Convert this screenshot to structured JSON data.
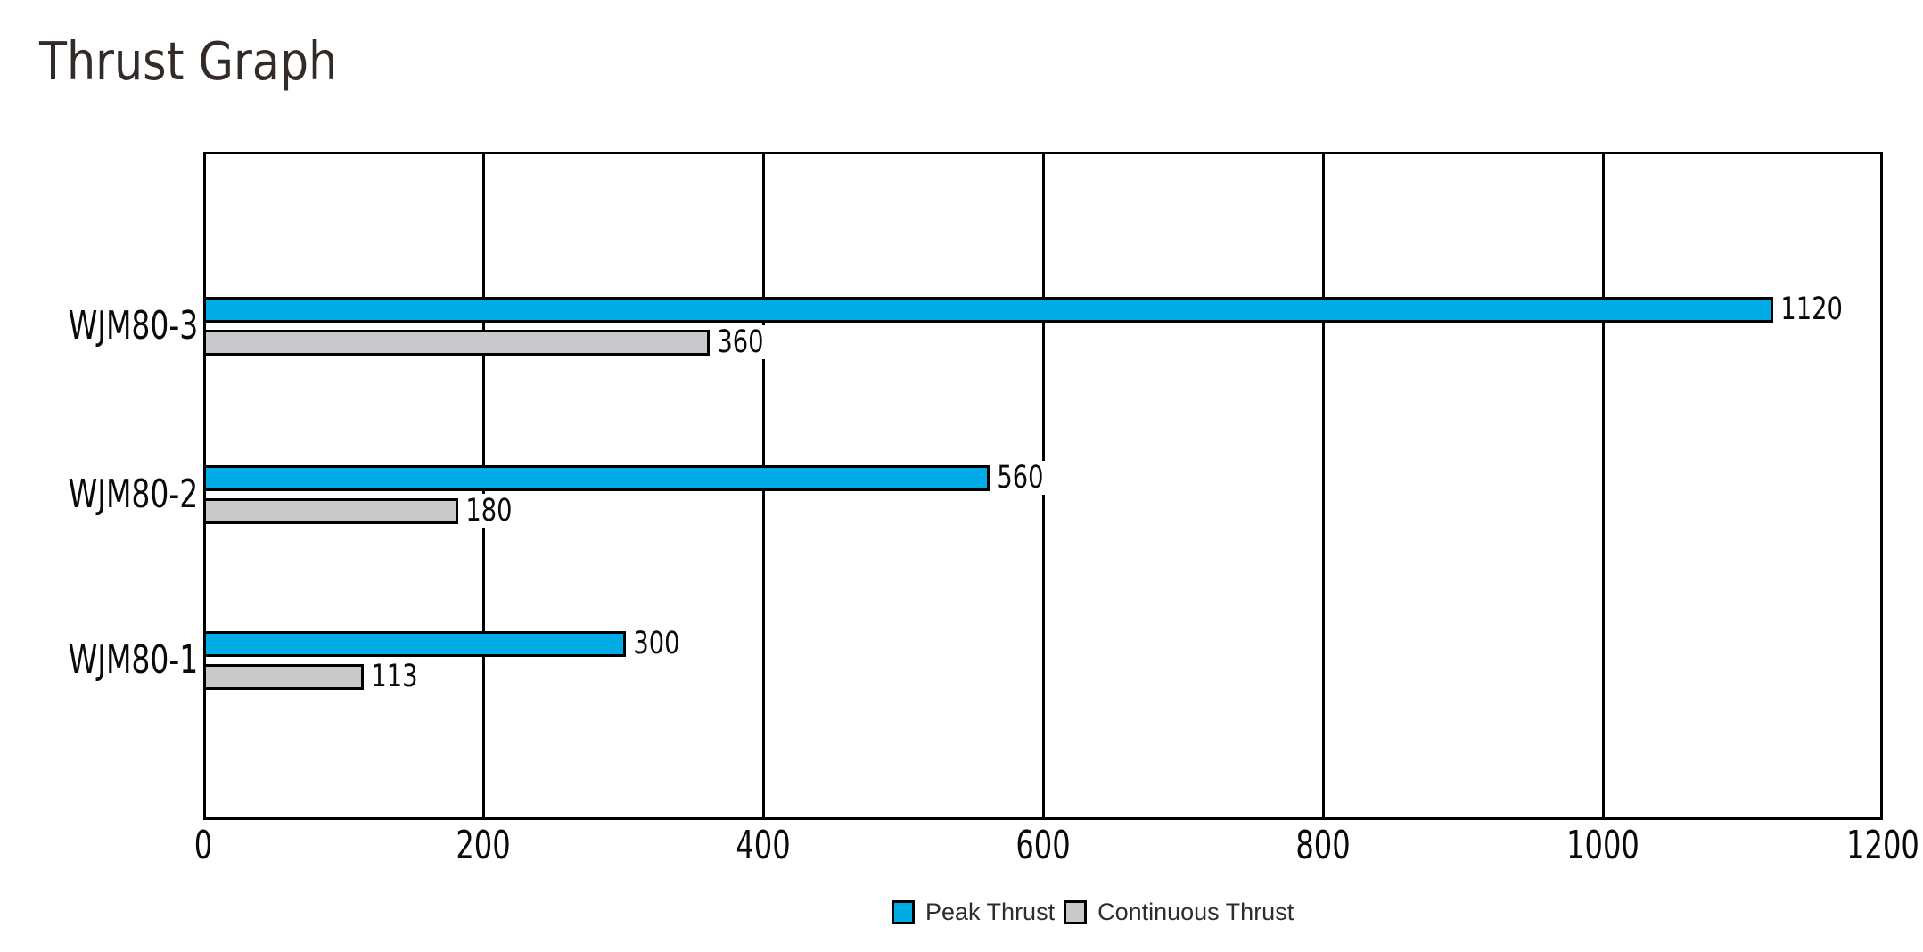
{
  "title": "Thrust Graph",
  "chart_data": {
    "type": "bar",
    "orientation": "horizontal",
    "title": "Thrust Graph",
    "categories": [
      "WJM80-1",
      "WJM80-2",
      "WJM80-3"
    ],
    "series": [
      {
        "name": "Peak Thrust",
        "color": "#00ace6",
        "values": [
          300,
          560,
          1120
        ]
      },
      {
        "name": "Continuous Thrust",
        "color": "#c9c9cb",
        "values": [
          113,
          180,
          360
        ]
      }
    ],
    "value_labels": {
      "Peak Thrust": [
        "300",
        "560",
        "1120"
      ],
      "Continuous Thrust": [
        "113",
        "180",
        "360"
      ]
    },
    "xlim": [
      0,
      1200
    ],
    "x_ticks": [
      "0",
      "200",
      "400",
      "600",
      "800",
      "1000",
      "1200"
    ],
    "grid": true,
    "gridline_color": "#000000",
    "bar_outline_color": "#000000",
    "legend_position": "bottom",
    "background_color": "#ffffff"
  }
}
